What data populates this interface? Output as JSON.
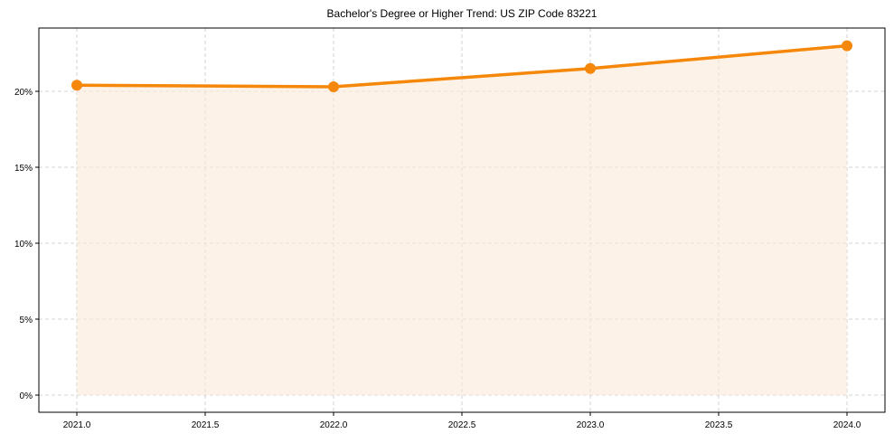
{
  "chart_data": {
    "type": "line",
    "title": "Bachelor's Degree or Higher Trend: US ZIP Code 83221",
    "xlabel": "",
    "ylabel": "",
    "x": [
      2021,
      2022,
      2023,
      2024
    ],
    "series": [
      {
        "name": "Bachelor's Degree or Higher",
        "values": [
          20.4,
          20.3,
          21.5,
          23.0
        ]
      }
    ],
    "xlim": [
      2020.85,
      2024.15
    ],
    "ylim": [
      -1.15,
      24.2
    ],
    "x_ticks": [
      2021.0,
      2021.5,
      2022.0,
      2022.5,
      2023.0,
      2023.5,
      2024.0
    ],
    "x_tick_labels": [
      "2021.0",
      "2021.5",
      "2022.0",
      "2022.5",
      "2023.0",
      "2023.5",
      "2024.0"
    ],
    "y_ticks": [
      0,
      5,
      10,
      15,
      20
    ],
    "y_tick_labels": [
      "0%",
      "5%",
      "10%",
      "15%",
      "20%"
    ],
    "grid": true,
    "fill_under": true,
    "legend": null,
    "colors": {
      "line": "#f5870a",
      "fill": "#fdf0e3",
      "grid": "#cccccc"
    }
  }
}
